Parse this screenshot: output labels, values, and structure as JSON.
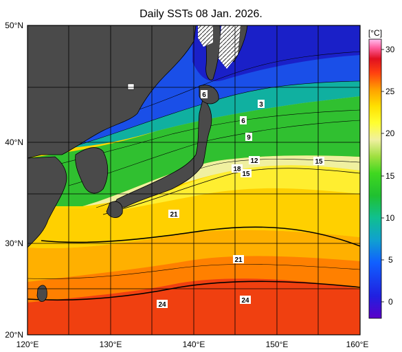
{
  "title": "Daily SSTs 08 Jan. 2026.",
  "unit_label": "[°C]",
  "lat_labels": [
    "50°N",
    "40°N",
    "30°N",
    "20°N"
  ],
  "lon_labels": [
    "120°E",
    "130°E",
    "140°E",
    "150°E",
    "160°E"
  ],
  "colorbar_ticks": [
    "30",
    "25",
    "20",
    "15",
    "10",
    "5",
    "0"
  ],
  "contour_labels": [
    "6",
    "3",
    "6",
    "9",
    "12",
    "18",
    "15",
    "15",
    "21",
    "21",
    "24",
    "24"
  ],
  "colors": {
    "land": "#4a4a4a",
    "sea_ice_pattern": "#ffffff"
  }
}
